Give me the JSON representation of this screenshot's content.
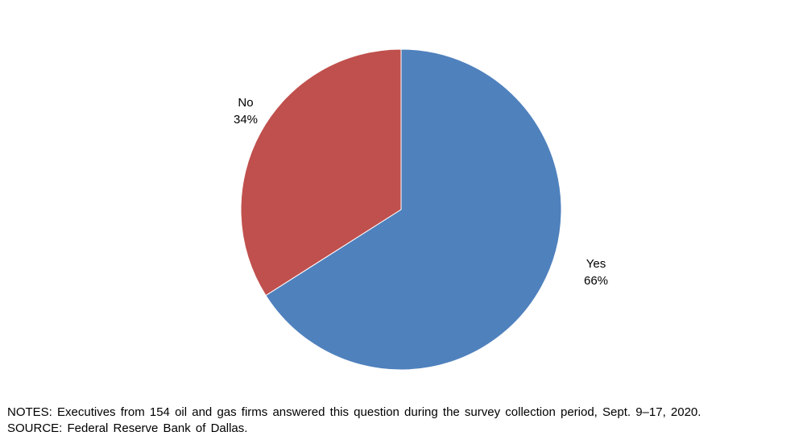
{
  "chart_data": {
    "type": "pie",
    "title": "",
    "slices": [
      {
        "label": "Yes",
        "value": 66,
        "value_label": "66%",
        "color": "#4F81BD"
      },
      {
        "label": "No",
        "value": 34,
        "value_label": "34%",
        "color": "#C0504D"
      }
    ],
    "start_angle": "12 o'clock",
    "direction": "clockwise",
    "slice_border_color": "#FFFFFF",
    "legend": "none"
  },
  "footer": {
    "notes": "NOTES: Executives from 154 oil and gas firms answered this question during the survey collection period, Sept. 9–17, 2020.",
    "source": "SOURCE: Federal Reserve Bank of Dallas."
  }
}
